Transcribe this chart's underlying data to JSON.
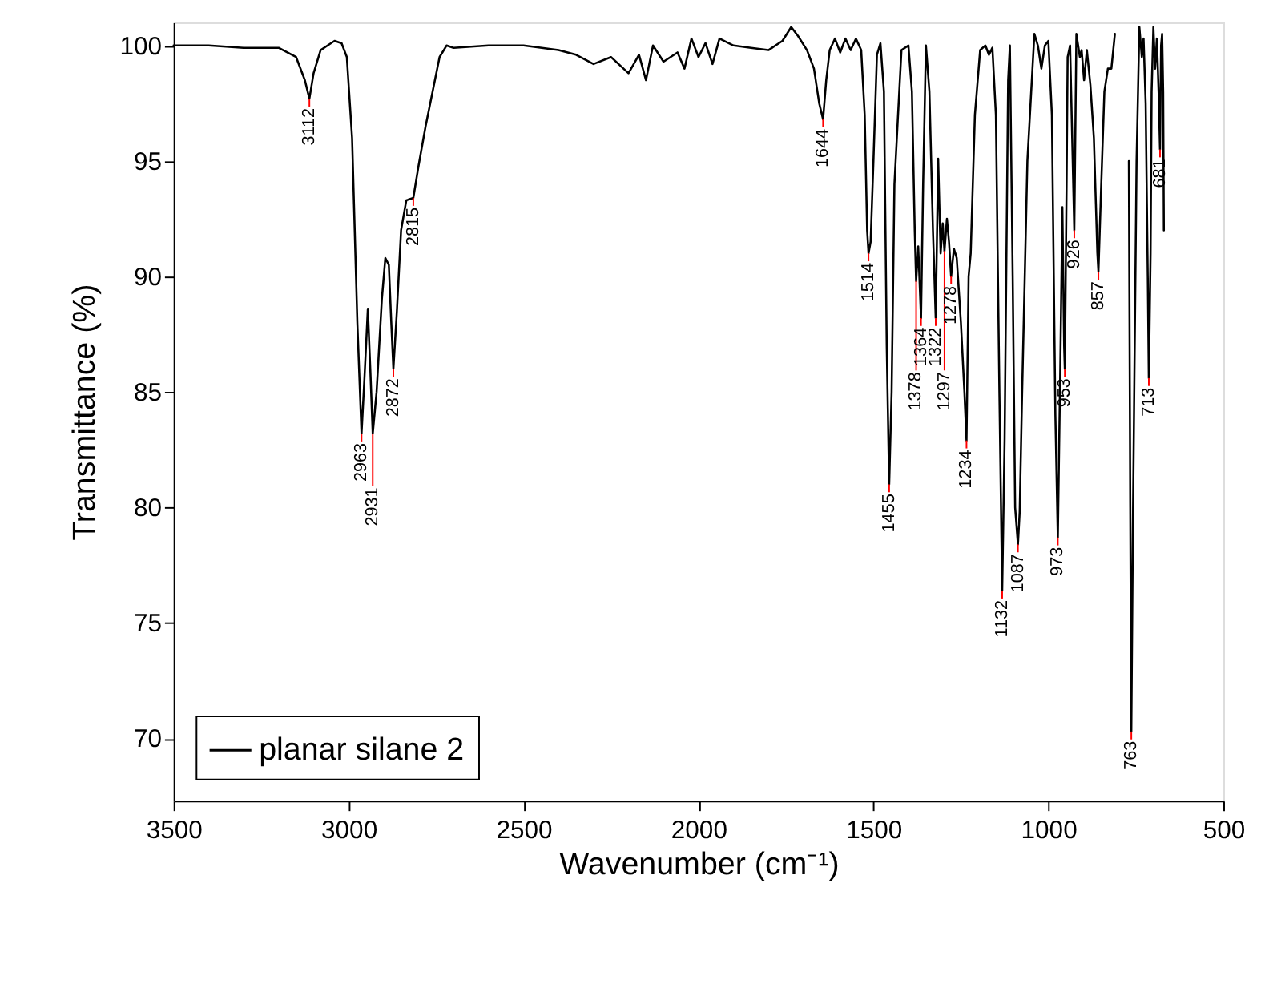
{
  "chart_data": {
    "type": "line",
    "xlabel": "Wavenumber (cm⁻¹)",
    "ylabel": "Transmittance (%)",
    "xlim": [
      3500,
      500
    ],
    "ylim": [
      67.3,
      101
    ],
    "xticks": [
      3500,
      3000,
      2500,
      2000,
      1500,
      1000,
      500
    ],
    "yticks": [
      70,
      75,
      80,
      85,
      90,
      95,
      100
    ],
    "grid": false,
    "legend": "bottom left",
    "marker": "none",
    "line_style": "solid",
    "x": [
      3500,
      3400,
      3300,
      3200,
      3150,
      3125,
      3112,
      3100,
      3080,
      3060,
      3040,
      3020,
      3005,
      2990,
      2975,
      2963,
      2955,
      2945,
      2938,
      2931,
      2920,
      2905,
      2895,
      2885,
      2878,
      2872,
      2862,
      2850,
      2835,
      2815,
      2800,
      2780,
      2760,
      2740,
      2720,
      2700,
      2600,
      2500,
      2400,
      2350,
      2300,
      2250,
      2200,
      2170,
      2150,
      2130,
      2100,
      2060,
      2040,
      2020,
      2000,
      1980,
      1960,
      1940,
      1900,
      1850,
      1800,
      1760,
      1735,
      1715,
      1690,
      1670,
      1655,
      1644,
      1635,
      1625,
      1610,
      1595,
      1580,
      1565,
      1550,
      1535,
      1525,
      1518,
      1514,
      1508,
      1500,
      1490,
      1480,
      1470,
      1462,
      1455,
      1448,
      1440,
      1420,
      1400,
      1390,
      1382,
      1378,
      1372,
      1364,
      1358,
      1350,
      1340,
      1330,
      1322,
      1315,
      1308,
      1302,
      1297,
      1290,
      1284,
      1278,
      1270,
      1262,
      1250,
      1240,
      1234,
      1228,
      1222,
      1210,
      1195,
      1180,
      1170,
      1160,
      1150,
      1140,
      1132,
      1125,
      1115,
      1110,
      1102,
      1095,
      1087,
      1082,
      1075,
      1060,
      1040,
      1030,
      1020,
      1010,
      1000,
      990,
      980,
      973,
      966,
      960,
      955,
      953,
      948,
      945,
      938,
      932,
      926,
      920,
      910,
      905,
      898,
      890,
      880,
      870,
      860,
      857,
      850,
      840,
      830,
      820,
      810,
      800,
      780,
      770,
      766,
      763,
      758,
      748,
      740,
      733,
      728,
      722,
      716,
      713,
      708,
      705,
      700,
      695,
      690,
      685,
      681,
      678,
      675,
      672,
      670
    ],
    "series": [
      {
        "name": "planar silane 2",
        "color": "#000000",
        "values": [
          100,
          100,
          99.9,
          99.9,
          99.5,
          98.5,
          97.7,
          98.8,
          99.8,
          100,
          100.2,
          100.1,
          99.5,
          96,
          88,
          83.2,
          85.5,
          88.6,
          86,
          83.2,
          85,
          89,
          90.8,
          90.5,
          88,
          86.0,
          88.5,
          92,
          93.3,
          93.4,
          94.8,
          96.5,
          98,
          99.5,
          100,
          99.9,
          100,
          100,
          99.8,
          99.6,
          99.2,
          99.5,
          98.8,
          99.6,
          98.5,
          100,
          99.3,
          99.7,
          99,
          100.3,
          99.5,
          100.1,
          99.2,
          100.3,
          100,
          99.9,
          99.8,
          100.2,
          100.8,
          100.4,
          99.8,
          99,
          97.5,
          96.8,
          98.5,
          99.8,
          100.3,
          99.7,
          100.3,
          99.8,
          100.3,
          99.8,
          97,
          92,
          91.0,
          91.5,
          95,
          99.6,
          100.1,
          98,
          87,
          81.0,
          85,
          94,
          99.8,
          100,
          98,
          92,
          89.8,
          91.3,
          88.2,
          94,
          100,
          98,
          92,
          88.2,
          95.1,
          91,
          92.3,
          91.1,
          92.5,
          91.5,
          90.0,
          91.2,
          90.8,
          88,
          85,
          82.9,
          90,
          91.0,
          97,
          99.8,
          100,
          99.6,
          99.9,
          97,
          85,
          76.4,
          83,
          98.5,
          100,
          90,
          80,
          78.4,
          79.8,
          85,
          95,
          100.5,
          100,
          99,
          100,
          100.2,
          97,
          84,
          78.7,
          86,
          93,
          87,
          86.0,
          94,
          99.5,
          100,
          96,
          92.0,
          100.5,
          99.5,
          99.8,
          98.5,
          99.8,
          98.3,
          96,
          91,
          90.2,
          93.5,
          98,
          99,
          99,
          100.5,
          null,
          null,
          95,
          80,
          70.3,
          80,
          95,
          100.8,
          99.5,
          100.3,
          97.5,
          90,
          85.6,
          91,
          98,
          100.8,
          99,
          100.3,
          98,
          95.5,
          100,
          100.5,
          98,
          92
        ]
      }
    ],
    "annotations": [
      {
        "text": "3112",
        "x": 3112,
        "y": 97.7
      },
      {
        "text": "2963",
        "x": 2963,
        "y": 83.2
      },
      {
        "text": "2931",
        "x": 2931,
        "y": 83.2
      },
      {
        "text": "2872",
        "x": 2872,
        "y": 86.0
      },
      {
        "text": "2815",
        "x": 2815,
        "y": 93.4
      },
      {
        "text": "1644",
        "x": 1644,
        "y": 96.8
      },
      {
        "text": "1514",
        "x": 1514,
        "y": 91.0
      },
      {
        "text": "1455",
        "x": 1455,
        "y": 81.0
      },
      {
        "text": "1378",
        "x": 1378,
        "y": 89.8
      },
      {
        "text": "1364",
        "x": 1364,
        "y": 88.2
      },
      {
        "text": "1322",
        "x": 1322,
        "y": 88.2
      },
      {
        "text": "1297",
        "x": 1297,
        "y": 91.1
      },
      {
        "text": "1278",
        "x": 1278,
        "y": 90.0
      },
      {
        "text": "1234",
        "x": 1234,
        "y": 82.9
      },
      {
        "text": "1132",
        "x": 1132,
        "y": 76.4
      },
      {
        "text": "1087",
        "x": 1087,
        "y": 78.4
      },
      {
        "text": "973",
        "x": 973,
        "y": 78.7
      },
      {
        "text": "953",
        "x": 953,
        "y": 86.0
      },
      {
        "text": "926",
        "x": 926,
        "y": 92.0
      },
      {
        "text": "857",
        "x": 857,
        "y": 90.2
      },
      {
        "text": "763",
        "x": 763,
        "y": 70.3
      },
      {
        "text": "713",
        "x": 713,
        "y": 85.6
      },
      {
        "text": "681",
        "x": 681,
        "y": 95.5
      }
    ]
  }
}
